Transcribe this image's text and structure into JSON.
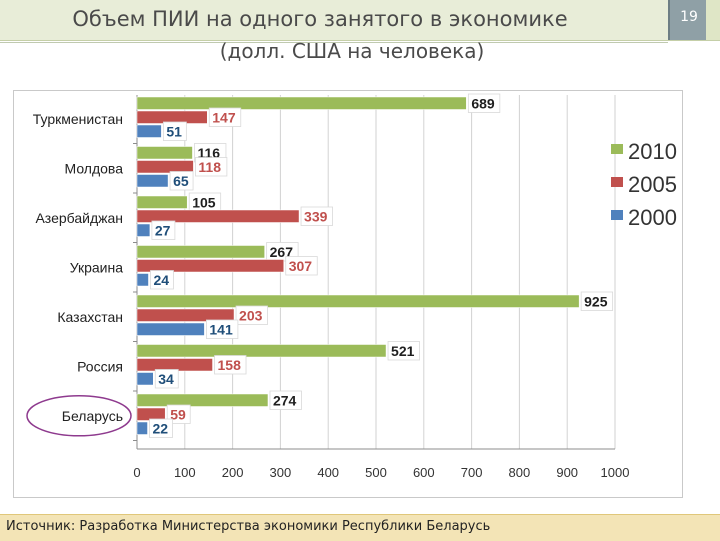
{
  "slide": {
    "title_line1": "Объем ПИИ на одного занятого в экономике",
    "title_line2": "(долл. США на человека)",
    "number": "19",
    "source": "Источник: Разработка Министерства экономики Республики Беларусь"
  },
  "chart_data": {
    "type": "bar",
    "orientation": "horizontal",
    "categories": [
      "Туркменистан",
      "Молдова",
      "Азербайджан",
      "Украина",
      "Казахстан",
      "Россия",
      "Беларусь"
    ],
    "series": [
      {
        "name": "2010",
        "color": "#9bbb59",
        "label_color": "#1f1f1f",
        "values": [
          689,
          116,
          105,
          267,
          925,
          521,
          274
        ]
      },
      {
        "name": "2005",
        "color": "#c0504d",
        "label_color": "#c0504d",
        "values": [
          147,
          118,
          339,
          307,
          203,
          158,
          59
        ]
      },
      {
        "name": "2000",
        "color": "#4f81bd",
        "label_color": "#1f4e79",
        "values": [
          51,
          65,
          27,
          24,
          141,
          34,
          22
        ]
      }
    ],
    "xlim": [
      0,
      1000
    ],
    "x_ticks": [
      0,
      100,
      200,
      300,
      400,
      500,
      600,
      700,
      800,
      900,
      1000
    ],
    "grid": true,
    "legend_position": "right",
    "highlighted_category": "Беларусь"
  }
}
